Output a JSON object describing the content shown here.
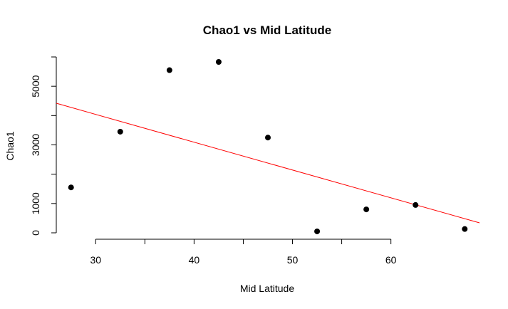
{
  "chart_data": {
    "type": "scatter",
    "title": "Chao1 vs Mid Latitude",
    "xlabel": "Mid Latitude",
    "ylabel": "Chao1",
    "xlim": [
      26,
      69
    ],
    "ylim": [
      0,
      6000
    ],
    "xticks": [
      30,
      40,
      50,
      60
    ],
    "yticks": [
      0,
      1000,
      3000,
      5000
    ],
    "points": [
      {
        "x": 27.5,
        "y": 1550
      },
      {
        "x": 32.5,
        "y": 3450
      },
      {
        "x": 37.5,
        "y": 5550
      },
      {
        "x": 42.5,
        "y": 5830
      },
      {
        "x": 47.5,
        "y": 3250
      },
      {
        "x": 52.5,
        "y": 50
      },
      {
        "x": 57.5,
        "y": 800
      },
      {
        "x": 62.5,
        "y": 950
      },
      {
        "x": 67.5,
        "y": 130
      }
    ],
    "regression_line": {
      "x": [
        26,
        69
      ],
      "y": [
        4420,
        340
      ],
      "color": "#ff0000"
    },
    "point_color": "#000000",
    "grid": false
  }
}
